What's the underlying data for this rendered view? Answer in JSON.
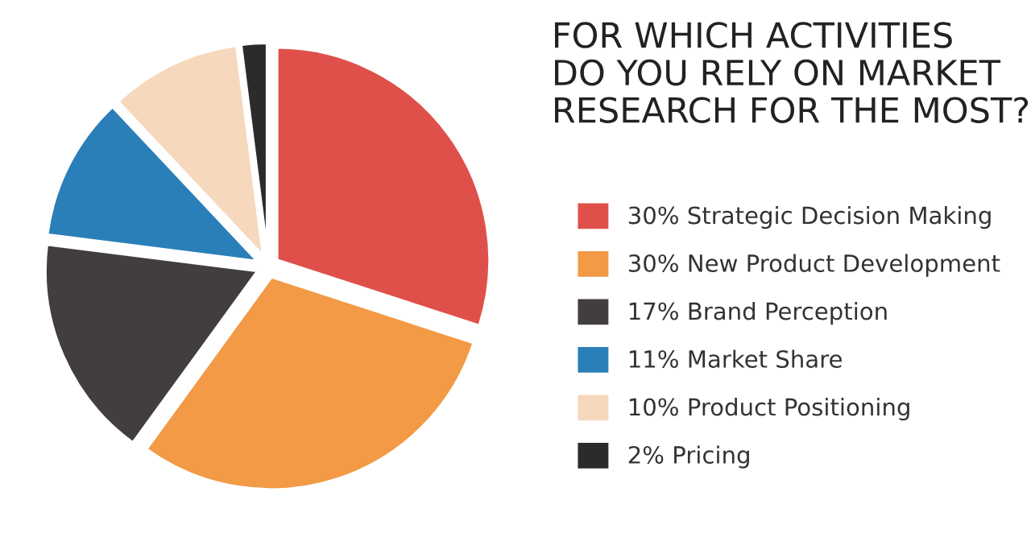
{
  "chart_data": {
    "type": "pie",
    "title": "FOR WHICH ACTIVITIES\nDO YOU RELY ON MARKET\nRESEARCH FOR THE MOST?",
    "categories": [
      "30% Strategic Decision Making",
      "30% New Product Development",
      "17% Brand Perception",
      "11% Market Share",
      "10% Product Positioning",
      "2% Pricing"
    ],
    "values": [
      30,
      30,
      17,
      11,
      10,
      2
    ],
    "colors": [
      "#e0504a",
      "#f29a45",
      "#433e3e",
      "#2a7fb8",
      "#f6d8bd",
      "#2b2b2b"
    ],
    "legend": "right"
  }
}
